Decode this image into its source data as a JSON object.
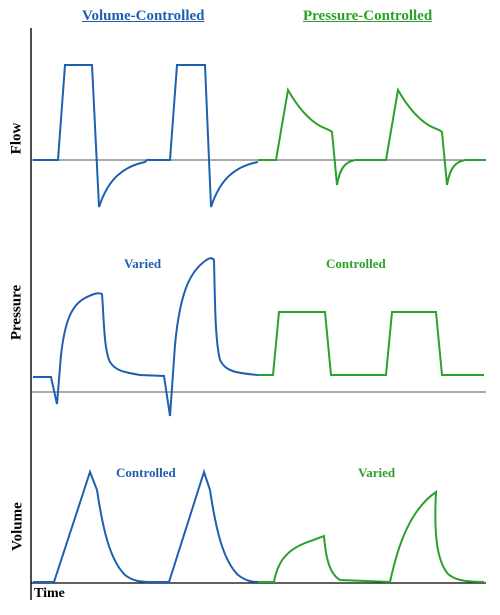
{
  "headers": {
    "volume_controlled": "Volume-Controlled",
    "pressure_controlled": "Pressure-Controlled"
  },
  "axes": {
    "flow": "Flow",
    "pressure": "Pressure",
    "volume": "Volume",
    "time": "Time"
  },
  "annotations": {
    "pressure_vc": "Varied",
    "pressure_pc": "Controlled",
    "volume_vc": "Controlled",
    "volume_pc": "Varied"
  },
  "colors": {
    "volume_controlled": "#1f5fb0",
    "pressure_controlled": "#2ca02c",
    "axis": "#000000",
    "baseline": "#555555"
  }
}
